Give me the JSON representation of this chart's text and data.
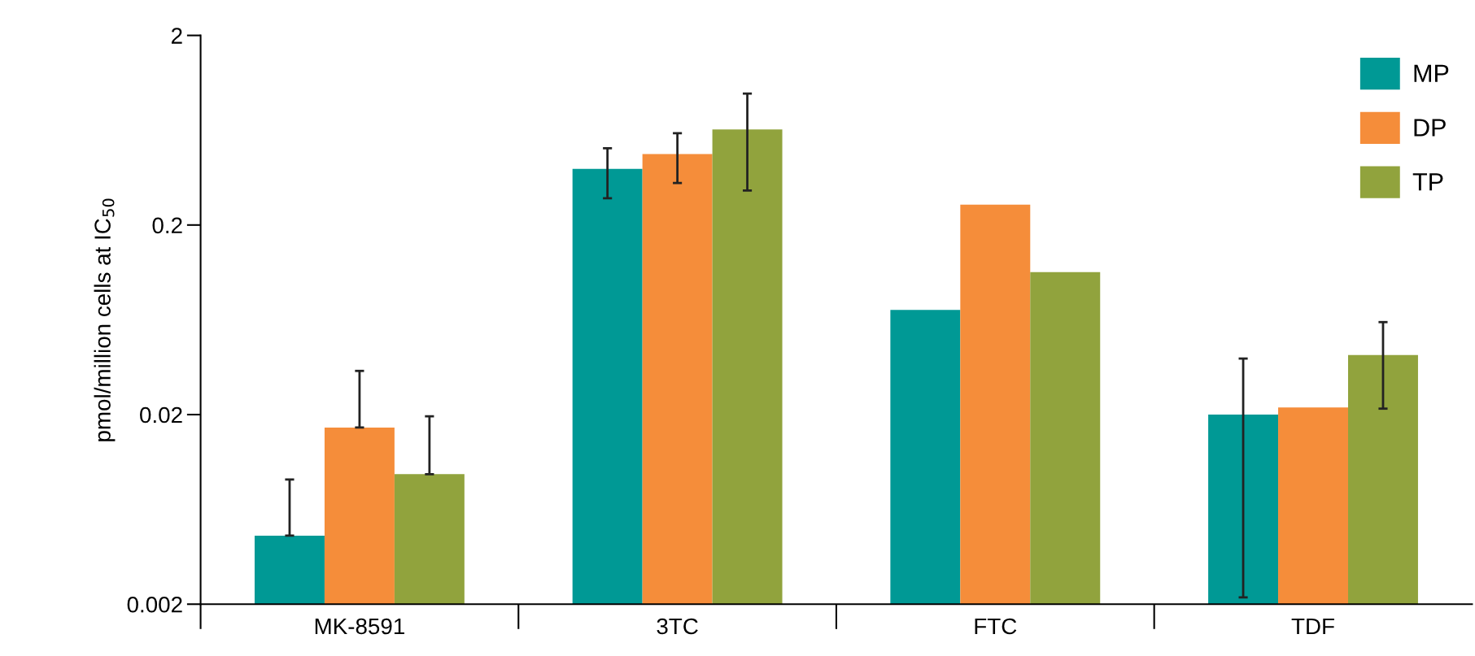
{
  "chart_data": {
    "type": "bar",
    "ylabel": "pmol/million cells at IC$_{50}$",
    "categories": [
      "MK-8591",
      "3TC",
      "FTC",
      "TDF"
    ],
    "log": true,
    "ylim": [
      0.002,
      2
    ],
    "yticks": [
      0.002,
      0.02,
      0.2,
      2
    ],
    "grid": false,
    "legend": "top right",
    "series": [
      {
        "name": "MP",
        "color": "#009995",
        "values": [
          0.0046,
          0.395,
          0.0713,
          0.02
        ],
        "errors": [
          [
            0.0046,
            0.0091
          ],
          [
            0.277,
            0.508
          ],
          null,
          [
            0.00217,
            0.0395
          ]
        ]
      },
      {
        "name": "DP",
        "color": "#f58d3a",
        "values": [
          0.0171,
          0.474,
          0.256,
          0.0218
        ],
        "errors": [
          [
            0.0171,
            0.034
          ],
          [
            0.333,
            0.61
          ],
          null,
          null
        ]
      },
      {
        "name": "TP",
        "color": "#91a33d",
        "values": [
          0.0097,
          0.638,
          0.113,
          0.0412
        ],
        "errors": [
          [
            0.0097,
            0.0196
          ],
          [
            0.304,
            0.986
          ],
          null,
          [
            0.0215,
            0.0615
          ]
        ]
      }
    ]
  }
}
